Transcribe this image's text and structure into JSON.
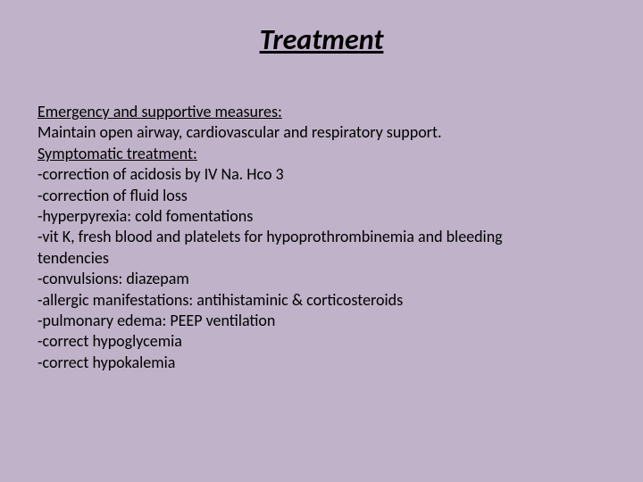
{
  "slide": {
    "title": "Treatment",
    "heading1": "Emergency and supportive measures:",
    "line1": "Maintain open airway, cardiovascular and respiratory support.",
    "heading2": "Symptomatic treatment:",
    "line2": "-correction of acidosis by IV Na. Hco 3",
    "line3": "-correction of fluid loss",
    "line4": "-hyperpyrexia: cold fomentations",
    "line5": "-vit K, fresh blood and platelets for hypoprothrombinemia and bleeding",
    "line6": "tendencies",
    "line7": "-convulsions: diazepam",
    "line8": "-allergic manifestations: antihistaminic & corticosteroids",
    "line9": "-pulmonary edema: PEEP ventilation",
    "line10": "-correct hypoglycemia",
    "line11": "-correct hypokalemia",
    "colors": {
      "background": "#c0b2c9",
      "text": "#000000"
    },
    "fonts": {
      "title_size": 32,
      "body_size": 18,
      "family": "Calibri"
    }
  }
}
